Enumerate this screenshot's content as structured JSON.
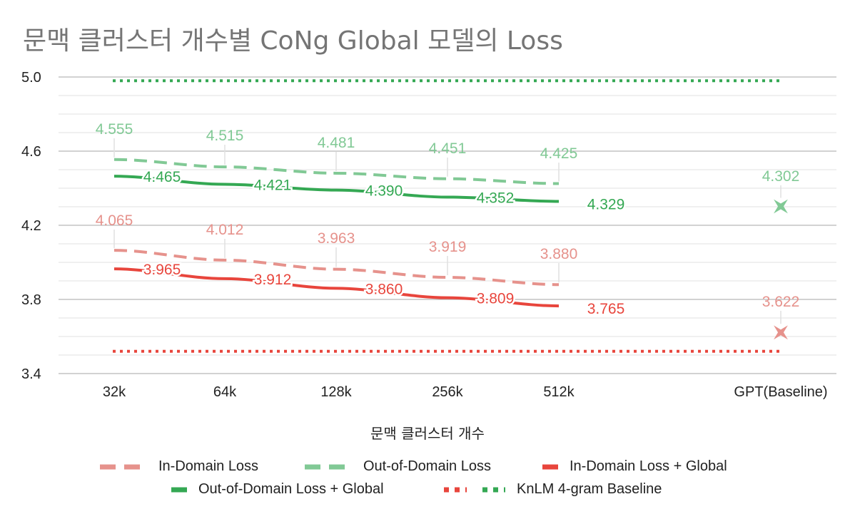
{
  "chart_data": {
    "type": "line",
    "title": "문맥 클러스터 개수별 CoNg Global 모델의 Loss",
    "xlabel": "문맥 클러스터 개수",
    "ylabel": "",
    "categories": [
      "32k",
      "64k",
      "128k",
      "256k",
      "512k",
      "GPT(Baseline)"
    ],
    "ylim": [
      3.4,
      5.0
    ],
    "yticks": [
      "5.0",
      "4.6",
      "4.2",
      "3.8",
      "3.4"
    ],
    "grid": true,
    "legend_position": "bottom",
    "series": [
      {
        "name": "In-Domain Loss",
        "style": "dashed",
        "color": "#e6928c",
        "values": [
          4.065,
          4.012,
          3.963,
          3.919,
          3.88,
          null
        ],
        "labels": [
          "4.065",
          "4.012",
          "3.963",
          "3.919",
          "3.880",
          ""
        ]
      },
      {
        "name": "Out-of-Domain Loss",
        "style": "dashed",
        "color": "#81c995",
        "values": [
          4.555,
          4.515,
          4.481,
          4.451,
          4.425,
          null
        ],
        "labels": [
          "4.555",
          "4.515",
          "4.481",
          "4.451",
          "4.425",
          ""
        ]
      },
      {
        "name": "In-Domain Loss + Global",
        "style": "solid",
        "color": "#e8453c",
        "values": [
          3.965,
          3.912,
          3.86,
          3.809,
          3.765,
          null
        ],
        "labels": [
          "3.965",
          "3.912",
          "3.860",
          "3.809",
          "3.765",
          ""
        ]
      },
      {
        "name": "Out-of-Domain Loss + Global",
        "style": "solid",
        "color": "#34a853",
        "values": [
          4.465,
          4.421,
          4.39,
          4.352,
          4.329,
          null
        ],
        "labels": [
          "4.465",
          "4.421",
          "4.390",
          "4.352",
          "4.329",
          ""
        ]
      },
      {
        "name": "",
        "style": "dotted",
        "color": "#e8453c",
        "values": [
          3.52,
          3.52,
          3.52,
          3.52,
          3.52,
          3.52
        ]
      },
      {
        "name": "KnLM 4-gram Baseline",
        "style": "dotted",
        "color": "#34a853",
        "values": [
          4.98,
          4.98,
          4.98,
          4.98,
          4.98,
          4.98
        ]
      }
    ],
    "baseline_points": [
      {
        "series": "In-Domain Loss",
        "category": "GPT(Baseline)",
        "value": 3.622,
        "label": "3.622",
        "color": "#e6928c"
      },
      {
        "series": "Out-of-Domain Loss",
        "category": "GPT(Baseline)",
        "value": 4.302,
        "label": "4.302",
        "color": "#81c995"
      }
    ]
  }
}
